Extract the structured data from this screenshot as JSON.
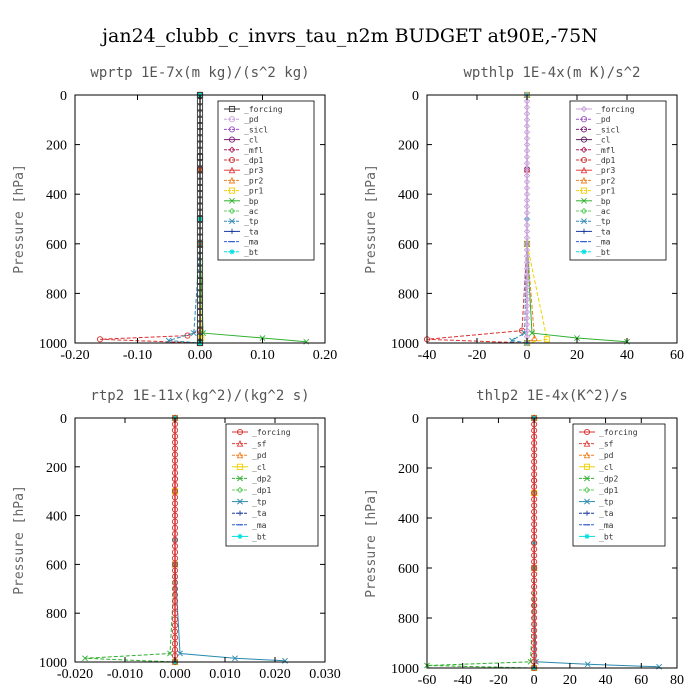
{
  "figure": {
    "title": "jan24_clubb_c_invrs_tau_n2m  BUDGET at90E,-75N"
  },
  "chart_data": [
    {
      "type": "line",
      "title": "wprtp  1E-7x(m kg)/(s^2 kg)",
      "ylabel": "Pressure [hPa]",
      "xlim": [
        -0.2,
        0.2
      ],
      "ylim": [
        1000,
        0
      ],
      "xticks": [
        "-0.20",
        "-0.10",
        "0.00",
        "0.10",
        "0.20"
      ],
      "xtick_values": [
        -0.2,
        -0.1,
        0.0,
        0.1,
        0.2
      ],
      "yticks": [
        "0",
        "200",
        "400",
        "600",
        "800",
        "1000"
      ],
      "ytick_values": [
        0,
        200,
        400,
        600,
        800,
        1000
      ],
      "legend_position": "top-right",
      "series": [
        {
          "name": "_forcing",
          "color": "#333333",
          "marker": "square",
          "x": [
            0,
            0,
            0,
            0,
            0
          ],
          "y": [
            0,
            250,
            500,
            750,
            1000
          ]
        },
        {
          "name": "_pd",
          "color": "#c8a0d8",
          "marker": "circle",
          "x": [
            0,
            0,
            0,
            0
          ],
          "y": [
            0,
            300,
            600,
            1000
          ]
        },
        {
          "name": "_sicl",
          "color": "#9a50c8",
          "marker": "circle",
          "x": [
            0,
            0,
            0,
            0
          ],
          "y": [
            0,
            300,
            600,
            1000
          ]
        },
        {
          "name": "_cl",
          "color": "#80207a",
          "marker": "circle",
          "x": [
            0,
            0,
            0,
            0
          ],
          "y": [
            0,
            300,
            600,
            1000
          ]
        },
        {
          "name": "_mfl",
          "color": "#b82060",
          "marker": "diamond",
          "x": [
            0,
            0,
            0,
            0
          ],
          "y": [
            0,
            300,
            600,
            1000
          ]
        },
        {
          "name": "_dp1",
          "color": "#d83030",
          "marker": "circle",
          "x": [
            0,
            0,
            0,
            -0.02,
            -0.16,
            0
          ],
          "y": [
            0,
            600,
            950,
            970,
            985,
            1000
          ]
        },
        {
          "name": "_pr3",
          "color": "#e04040",
          "marker": "triangle",
          "x": [
            0,
            0,
            0,
            0
          ],
          "y": [
            0,
            300,
            600,
            1000
          ]
        },
        {
          "name": "_pr2",
          "color": "#f08020",
          "marker": "triangle",
          "x": [
            0,
            0,
            0,
            0
          ],
          "y": [
            0,
            300,
            600,
            1000
          ]
        },
        {
          "name": "_pr1",
          "color": "#f0d000",
          "marker": "square",
          "x": [
            0,
            0,
            0.002,
            0
          ],
          "y": [
            0,
            600,
            980,
            1000
          ]
        },
        {
          "name": "_bp",
          "color": "#30b030",
          "marker": "cross",
          "x": [
            0,
            0,
            0.005,
            0.1,
            0.17
          ],
          "y": [
            0,
            600,
            960,
            980,
            995
          ]
        },
        {
          "name": "_ac",
          "color": "#60d060",
          "marker": "diamond",
          "x": [
            0,
            0,
            0
          ],
          "y": [
            0,
            500,
            1000
          ]
        },
        {
          "name": "_tp",
          "color": "#2a8ab0",
          "marker": "cross",
          "x": [
            0,
            0,
            -0.01,
            -0.05,
            0
          ],
          "y": [
            0,
            600,
            960,
            990,
            1000
          ]
        },
        {
          "name": "_ta",
          "color": "#1a3aa0",
          "marker": "plus",
          "x": [
            0,
            0,
            0
          ],
          "y": [
            0,
            500,
            1000
          ]
        },
        {
          "name": "_ma",
          "color": "#3060d0",
          "marker": "dash",
          "x": [
            0,
            0,
            0
          ],
          "y": [
            0,
            500,
            1000
          ]
        },
        {
          "name": "_bt",
          "color": "#00e0e0",
          "marker": "star",
          "x": [
            0,
            0,
            0
          ],
          "y": [
            0,
            500,
            1000
          ]
        }
      ]
    },
    {
      "type": "line",
      "title": "wpthlp  1E-4x(m K)/s^2",
      "ylabel": "Pressure [hPa]",
      "xlim": [
        -40,
        60
      ],
      "ylim": [
        1000,
        0
      ],
      "xticks": [
        "-40",
        "-20",
        "0",
        "20",
        "40",
        "60"
      ],
      "xtick_values": [
        -40,
        -20,
        0,
        20,
        40,
        60
      ],
      "yticks": [
        "0",
        "200",
        "400",
        "600",
        "800",
        "1000"
      ],
      "ytick_values": [
        0,
        200,
        400,
        600,
        800,
        1000
      ],
      "legend_position": "top-right",
      "series": [
        {
          "name": "_forcing",
          "color": "#c8a0d8",
          "marker": "diamond",
          "x": [
            0,
            0,
            0,
            0
          ],
          "y": [
            0,
            300,
            600,
            1000
          ]
        },
        {
          "name": "_pd",
          "color": "#9a50c8",
          "marker": "circle",
          "x": [
            0,
            0,
            0,
            0
          ],
          "y": [
            0,
            300,
            600,
            1000
          ]
        },
        {
          "name": "_sicl",
          "color": "#80207a",
          "marker": "circle",
          "x": [
            0,
            0,
            0,
            0
          ],
          "y": [
            0,
            300,
            600,
            1000
          ]
        },
        {
          "name": "_cl",
          "color": "#602060",
          "marker": "circle",
          "x": [
            0,
            0,
            0,
            0
          ],
          "y": [
            0,
            300,
            600,
            1000
          ]
        },
        {
          "name": "_mfl",
          "color": "#b82060",
          "marker": "diamond",
          "x": [
            0,
            0,
            0,
            0
          ],
          "y": [
            0,
            300,
            600,
            1000
          ]
        },
        {
          "name": "_dp1",
          "color": "#d83030",
          "marker": "circle",
          "x": [
            0,
            0,
            -2,
            -40,
            0
          ],
          "y": [
            0,
            600,
            950,
            985,
            1000
          ]
        },
        {
          "name": "_pr3",
          "color": "#e04040",
          "marker": "triangle",
          "x": [
            0,
            0,
            0,
            0
          ],
          "y": [
            0,
            300,
            600,
            1000
          ]
        },
        {
          "name": "_pr2",
          "color": "#f08020",
          "marker": "triangle",
          "x": [
            0,
            0,
            3,
            0
          ],
          "y": [
            0,
            600,
            980,
            1000
          ]
        },
        {
          "name": "_pr1",
          "color": "#f0d000",
          "marker": "square",
          "x": [
            0,
            0,
            8,
            0
          ],
          "y": [
            0,
            600,
            985,
            1000
          ]
        },
        {
          "name": "_bp",
          "color": "#30b030",
          "marker": "cross",
          "x": [
            0,
            0,
            2,
            20,
            40
          ],
          "y": [
            0,
            600,
            960,
            980,
            995
          ]
        },
        {
          "name": "_ac",
          "color": "#60d060",
          "marker": "diamond",
          "x": [
            0,
            0,
            0
          ],
          "y": [
            0,
            500,
            1000
          ]
        },
        {
          "name": "_tp",
          "color": "#2a8ab0",
          "marker": "cross",
          "x": [
            0,
            0,
            -1,
            -6,
            0
          ],
          "y": [
            0,
            600,
            960,
            990,
            1000
          ]
        },
        {
          "name": "_ta",
          "color": "#1a3aa0",
          "marker": "plus",
          "x": [
            0,
            0,
            0
          ],
          "y": [
            0,
            500,
            1000
          ]
        },
        {
          "name": "_ma",
          "color": "#3060d0",
          "marker": "dash",
          "x": [
            0,
            0,
            0
          ],
          "y": [
            0,
            500,
            1000
          ]
        },
        {
          "name": "_bt",
          "color": "#00e0e0",
          "marker": "star",
          "x": [
            0,
            0,
            0
          ],
          "y": [
            0,
            500,
            1000
          ]
        }
      ]
    },
    {
      "type": "line",
      "title": "rtp2  1E-11x(kg^2)/(kg^2 s)",
      "ylabel": "Pressure [hPa]",
      "xlim": [
        -0.02,
        0.03
      ],
      "ylim": [
        1000,
        0
      ],
      "xticks": [
        "-0.020",
        "-0.010",
        "0.000",
        "0.010",
        "0.020",
        "0.030"
      ],
      "xtick_values": [
        -0.02,
        -0.01,
        0.0,
        0.01,
        0.02,
        0.03
      ],
      "yticks": [
        "0",
        "200",
        "400",
        "600",
        "800",
        "1000"
      ],
      "ytick_values": [
        0,
        200,
        400,
        600,
        800,
        1000
      ],
      "legend_position": "top-right",
      "series": [
        {
          "name": "_forcing",
          "color": "#d83030",
          "marker": "circle",
          "x": [
            0,
            0,
            0,
            0,
            0
          ],
          "y": [
            0,
            250,
            500,
            750,
            1000
          ]
        },
        {
          "name": "_sf",
          "color": "#e04040",
          "marker": "triangle",
          "x": [
            0,
            0,
            0,
            0
          ],
          "y": [
            0,
            300,
            600,
            1000
          ]
        },
        {
          "name": "_pd",
          "color": "#f08020",
          "marker": "triangle",
          "x": [
            0,
            0,
            0,
            0
          ],
          "y": [
            0,
            300,
            600,
            1000
          ]
        },
        {
          "name": "_cl",
          "color": "#f0d000",
          "marker": "square",
          "x": [
            0,
            0,
            0,
            0
          ],
          "y": [
            0,
            300,
            600,
            1000
          ]
        },
        {
          "name": "_dp2",
          "color": "#30b030",
          "marker": "cross",
          "x": [
            0,
            0,
            -0.001,
            -0.018,
            0
          ],
          "y": [
            0,
            600,
            965,
            985,
            1000
          ]
        },
        {
          "name": "_dp1",
          "color": "#60d060",
          "marker": "diamond",
          "x": [
            0,
            0,
            0,
            0
          ],
          "y": [
            0,
            300,
            600,
            1000
          ]
        },
        {
          "name": "_tp",
          "color": "#2a8ab0",
          "marker": "cross",
          "x": [
            0,
            0,
            0.001,
            0.012,
            0.022
          ],
          "y": [
            0,
            600,
            965,
            985,
            995
          ]
        },
        {
          "name": "_ta",
          "color": "#1a3aa0",
          "marker": "plus",
          "x": [
            0,
            0,
            0
          ],
          "y": [
            0,
            500,
            1000
          ]
        },
        {
          "name": "_ma",
          "color": "#3060d0",
          "marker": "dash",
          "x": [
            0,
            0,
            0
          ],
          "y": [
            0,
            500,
            1000
          ]
        },
        {
          "name": "_bt",
          "color": "#00e0e0",
          "marker": "star",
          "x": [
            0,
            0,
            0
          ],
          "y": [
            0,
            500,
            1000
          ]
        }
      ]
    },
    {
      "type": "line",
      "title": "thlp2  1E-4x(K^2)/s",
      "ylabel": "Pressure [hPa]",
      "xlim": [
        -60,
        80
      ],
      "ylim": [
        1000,
        0
      ],
      "xticks": [
        "-60",
        "-40",
        "-20",
        "0",
        "20",
        "40",
        "60",
        "80"
      ],
      "xtick_values": [
        -60,
        -40,
        -20,
        0,
        20,
        40,
        60,
        80
      ],
      "yticks": [
        "0",
        "200",
        "400",
        "600",
        "800",
        "1000"
      ],
      "ytick_values": [
        0,
        200,
        400,
        600,
        800,
        1000
      ],
      "legend_position": "top-right",
      "series": [
        {
          "name": "_forcing",
          "color": "#d83030",
          "marker": "circle",
          "x": [
            0,
            0,
            0,
            0,
            0
          ],
          "y": [
            0,
            250,
            500,
            750,
            1000
          ]
        },
        {
          "name": "_sf",
          "color": "#e04040",
          "marker": "triangle",
          "x": [
            0,
            0,
            0,
            0
          ],
          "y": [
            0,
            300,
            600,
            1000
          ]
        },
        {
          "name": "_pd",
          "color": "#f08020",
          "marker": "triangle",
          "x": [
            0,
            0,
            0,
            0
          ],
          "y": [
            0,
            300,
            600,
            1000
          ]
        },
        {
          "name": "_cl",
          "color": "#f0d000",
          "marker": "square",
          "x": [
            0,
            0,
            0,
            0
          ],
          "y": [
            0,
            300,
            600,
            1000
          ]
        },
        {
          "name": "_dp2",
          "color": "#30b030",
          "marker": "cross",
          "x": [
            0,
            0,
            -2,
            -60,
            0
          ],
          "y": [
            0,
            600,
            975,
            990,
            1000
          ]
        },
        {
          "name": "_dp1",
          "color": "#60d060",
          "marker": "diamond",
          "x": [
            0,
            0,
            0,
            0
          ],
          "y": [
            0,
            300,
            600,
            1000
          ]
        },
        {
          "name": "_tp",
          "color": "#2a8ab0",
          "marker": "cross",
          "x": [
            0,
            0,
            1,
            30,
            70
          ],
          "y": [
            0,
            600,
            975,
            985,
            995
          ]
        },
        {
          "name": "_ta",
          "color": "#1a3aa0",
          "marker": "plus",
          "x": [
            0,
            0,
            0
          ],
          "y": [
            0,
            500,
            1000
          ]
        },
        {
          "name": "_ma",
          "color": "#3060d0",
          "marker": "dash",
          "x": [
            0,
            0,
            0
          ],
          "y": [
            0,
            500,
            1000
          ]
        },
        {
          "name": "_bt",
          "color": "#00e0e0",
          "marker": "star",
          "x": [
            0,
            0,
            0
          ],
          "y": [
            0,
            500,
            1000
          ]
        }
      ]
    }
  ]
}
